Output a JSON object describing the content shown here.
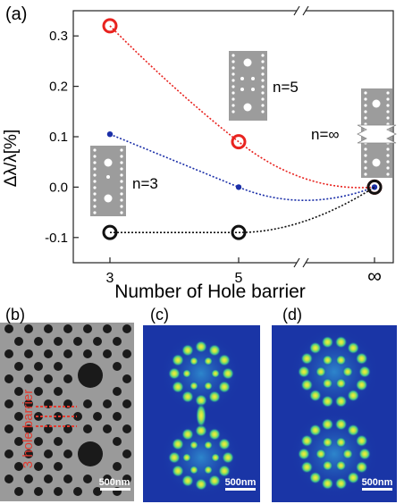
{
  "figure": {
    "panel_labels": {
      "a": "(a)",
      "b": "(b)",
      "c": "(c)",
      "d": "(d)"
    },
    "scale_bar_label": "500nm",
    "sem_annotation": "3 hole barrier",
    "inset_labels": [
      "n=3",
      "n=5",
      "n=∞"
    ]
  },
  "chart_data": {
    "type": "line",
    "xlabel": "Number of Hole barrier",
    "ylabel": "Δλ/λ[%]",
    "categories": [
      "3",
      "5",
      "∞"
    ],
    "axis_break": "x",
    "ylim": [
      -0.15,
      0.35
    ],
    "yticks": [
      -0.1,
      0.0,
      0.1,
      0.2,
      0.3
    ],
    "ytick_labels": [
      "-0.1",
      "0.0",
      "0.1",
      "0.2",
      "0.3"
    ],
    "grid": false,
    "series": [
      {
        "values": [
          0.32,
          0.09,
          0.0
        ],
        "color": "#e8231f",
        "marker": "open-circle"
      },
      {
        "values": [
          0.105,
          0.0,
          0.0
        ],
        "color": "#1b2fa8",
        "marker": "dot"
      },
      {
        "values": [
          -0.09,
          -0.09,
          0.0
        ],
        "color": "#111111",
        "marker": "open-circle"
      }
    ]
  },
  "colors": {
    "sem_background": "#9a9a9a",
    "field_background": "#1a35a6",
    "field_mode": "#f1ef3a"
  }
}
